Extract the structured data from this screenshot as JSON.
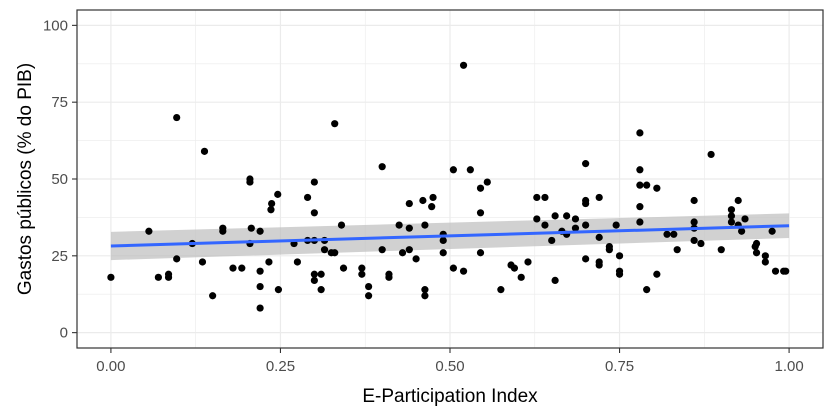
{
  "chart_data": {
    "type": "scatter",
    "title": "",
    "xlabel": "E-Participation Index",
    "ylabel": "Gastos públicos (% do PIB)",
    "xlim": [
      -0.05,
      1.05
    ],
    "ylim": [
      -5,
      105
    ],
    "x_ticks": [
      "0.00",
      "0.25",
      "0.50",
      "0.75",
      "1.00"
    ],
    "y_ticks": [
      "0",
      "25",
      "50",
      "75",
      "100"
    ],
    "grid": true,
    "legend": "none",
    "colors": {
      "points": "#000000",
      "fit_line": "#3366FF",
      "confidence_band": "#BEBEBE",
      "panel_border": "#333333",
      "grid_major": "#EBEBEB"
    },
    "series": [
      {
        "type": "scatter",
        "points": [
          [
            0.0,
            18
          ],
          [
            0.056,
            33
          ],
          [
            0.07,
            18
          ],
          [
            0.085,
            19
          ],
          [
            0.085,
            18
          ],
          [
            0.097,
            24
          ],
          [
            0.097,
            70
          ],
          [
            0.12,
            29
          ],
          [
            0.135,
            23
          ],
          [
            0.138,
            59
          ],
          [
            0.15,
            12
          ],
          [
            0.165,
            33
          ],
          [
            0.165,
            34
          ],
          [
            0.18,
            21
          ],
          [
            0.193,
            21
          ],
          [
            0.205,
            50
          ],
          [
            0.205,
            49
          ],
          [
            0.205,
            29
          ],
          [
            0.207,
            34
          ],
          [
            0.22,
            33
          ],
          [
            0.22,
            20
          ],
          [
            0.22,
            15
          ],
          [
            0.22,
            8
          ],
          [
            0.233,
            23
          ],
          [
            0.236,
            40
          ],
          [
            0.237,
            42
          ],
          [
            0.246,
            45
          ],
          [
            0.247,
            14
          ],
          [
            0.27,
            29
          ],
          [
            0.275,
            23
          ],
          [
            0.29,
            30
          ],
          [
            0.29,
            44
          ],
          [
            0.3,
            49
          ],
          [
            0.3,
            39
          ],
          [
            0.3,
            30
          ],
          [
            0.3,
            19
          ],
          [
            0.3,
            17
          ],
          [
            0.31,
            14
          ],
          [
            0.31,
            19
          ],
          [
            0.315,
            30
          ],
          [
            0.315,
            27
          ],
          [
            0.325,
            26
          ],
          [
            0.33,
            68
          ],
          [
            0.33,
            26
          ],
          [
            0.34,
            35
          ],
          [
            0.343,
            21
          ],
          [
            0.37,
            21
          ],
          [
            0.37,
            19
          ],
          [
            0.38,
            15
          ],
          [
            0.38,
            12
          ],
          [
            0.4,
            54
          ],
          [
            0.4,
            27
          ],
          [
            0.41,
            19
          ],
          [
            0.41,
            18
          ],
          [
            0.425,
            35
          ],
          [
            0.43,
            26
          ],
          [
            0.44,
            34
          ],
          [
            0.44,
            42
          ],
          [
            0.44,
            27
          ],
          [
            0.45,
            24
          ],
          [
            0.46,
            43
          ],
          [
            0.463,
            35
          ],
          [
            0.463,
            14
          ],
          [
            0.463,
            12
          ],
          [
            0.473,
            41
          ],
          [
            0.475,
            44
          ],
          [
            0.49,
            32
          ],
          [
            0.49,
            30
          ],
          [
            0.49,
            26
          ],
          [
            0.505,
            53
          ],
          [
            0.505,
            21
          ],
          [
            0.52,
            87
          ],
          [
            0.52,
            20
          ],
          [
            0.53,
            53
          ],
          [
            0.545,
            47
          ],
          [
            0.545,
            39
          ],
          [
            0.545,
            26
          ],
          [
            0.555,
            49
          ],
          [
            0.575,
            14
          ],
          [
            0.59,
            22
          ],
          [
            0.595,
            21
          ],
          [
            0.605,
            18
          ],
          [
            0.615,
            23
          ],
          [
            0.628,
            44
          ],
          [
            0.628,
            37
          ],
          [
            0.64,
            44
          ],
          [
            0.64,
            35
          ],
          [
            0.65,
            30
          ],
          [
            0.655,
            38
          ],
          [
            0.655,
            17
          ],
          [
            0.665,
            33
          ],
          [
            0.672,
            38
          ],
          [
            0.672,
            32
          ],
          [
            0.685,
            37
          ],
          [
            0.685,
            34
          ],
          [
            0.7,
            55
          ],
          [
            0.7,
            43
          ],
          [
            0.7,
            42
          ],
          [
            0.7,
            35
          ],
          [
            0.7,
            24
          ],
          [
            0.72,
            44
          ],
          [
            0.72,
            31
          ],
          [
            0.72,
            23
          ],
          [
            0.72,
            22
          ],
          [
            0.735,
            28
          ],
          [
            0.735,
            27
          ],
          [
            0.745,
            35
          ],
          [
            0.75,
            25
          ],
          [
            0.75,
            20
          ],
          [
            0.75,
            19
          ],
          [
            0.78,
            65
          ],
          [
            0.78,
            53
          ],
          [
            0.78,
            48
          ],
          [
            0.78,
            41
          ],
          [
            0.78,
            36
          ],
          [
            0.79,
            48
          ],
          [
            0.79,
            14
          ],
          [
            0.805,
            47
          ],
          [
            0.805,
            19
          ],
          [
            0.82,
            32
          ],
          [
            0.83,
            32
          ],
          [
            0.835,
            27
          ],
          [
            0.86,
            43
          ],
          [
            0.86,
            36
          ],
          [
            0.86,
            34
          ],
          [
            0.86,
            30
          ],
          [
            0.87,
            29
          ],
          [
            0.885,
            58
          ],
          [
            0.9,
            27
          ],
          [
            0.915,
            40
          ],
          [
            0.915,
            38
          ],
          [
            0.915,
            36
          ],
          [
            0.925,
            43
          ],
          [
            0.925,
            35
          ],
          [
            0.93,
            33
          ],
          [
            0.935,
            37
          ],
          [
            0.95,
            28
          ],
          [
            0.952,
            29
          ],
          [
            0.952,
            26
          ],
          [
            0.965,
            25
          ],
          [
            0.965,
            23
          ],
          [
            0.975,
            33
          ],
          [
            0.98,
            20
          ],
          [
            0.992,
            20
          ],
          [
            0.995,
            20
          ]
        ]
      },
      {
        "type": "line",
        "smooth": "linear fit with confidence band",
        "x": [
          0.0,
          1.0
        ],
        "y": [
          28.2,
          34.8
        ],
        "ci_lower": [
          23.6,
          30.8
        ],
        "ci_upper": [
          32.8,
          38.8
        ]
      }
    ]
  }
}
